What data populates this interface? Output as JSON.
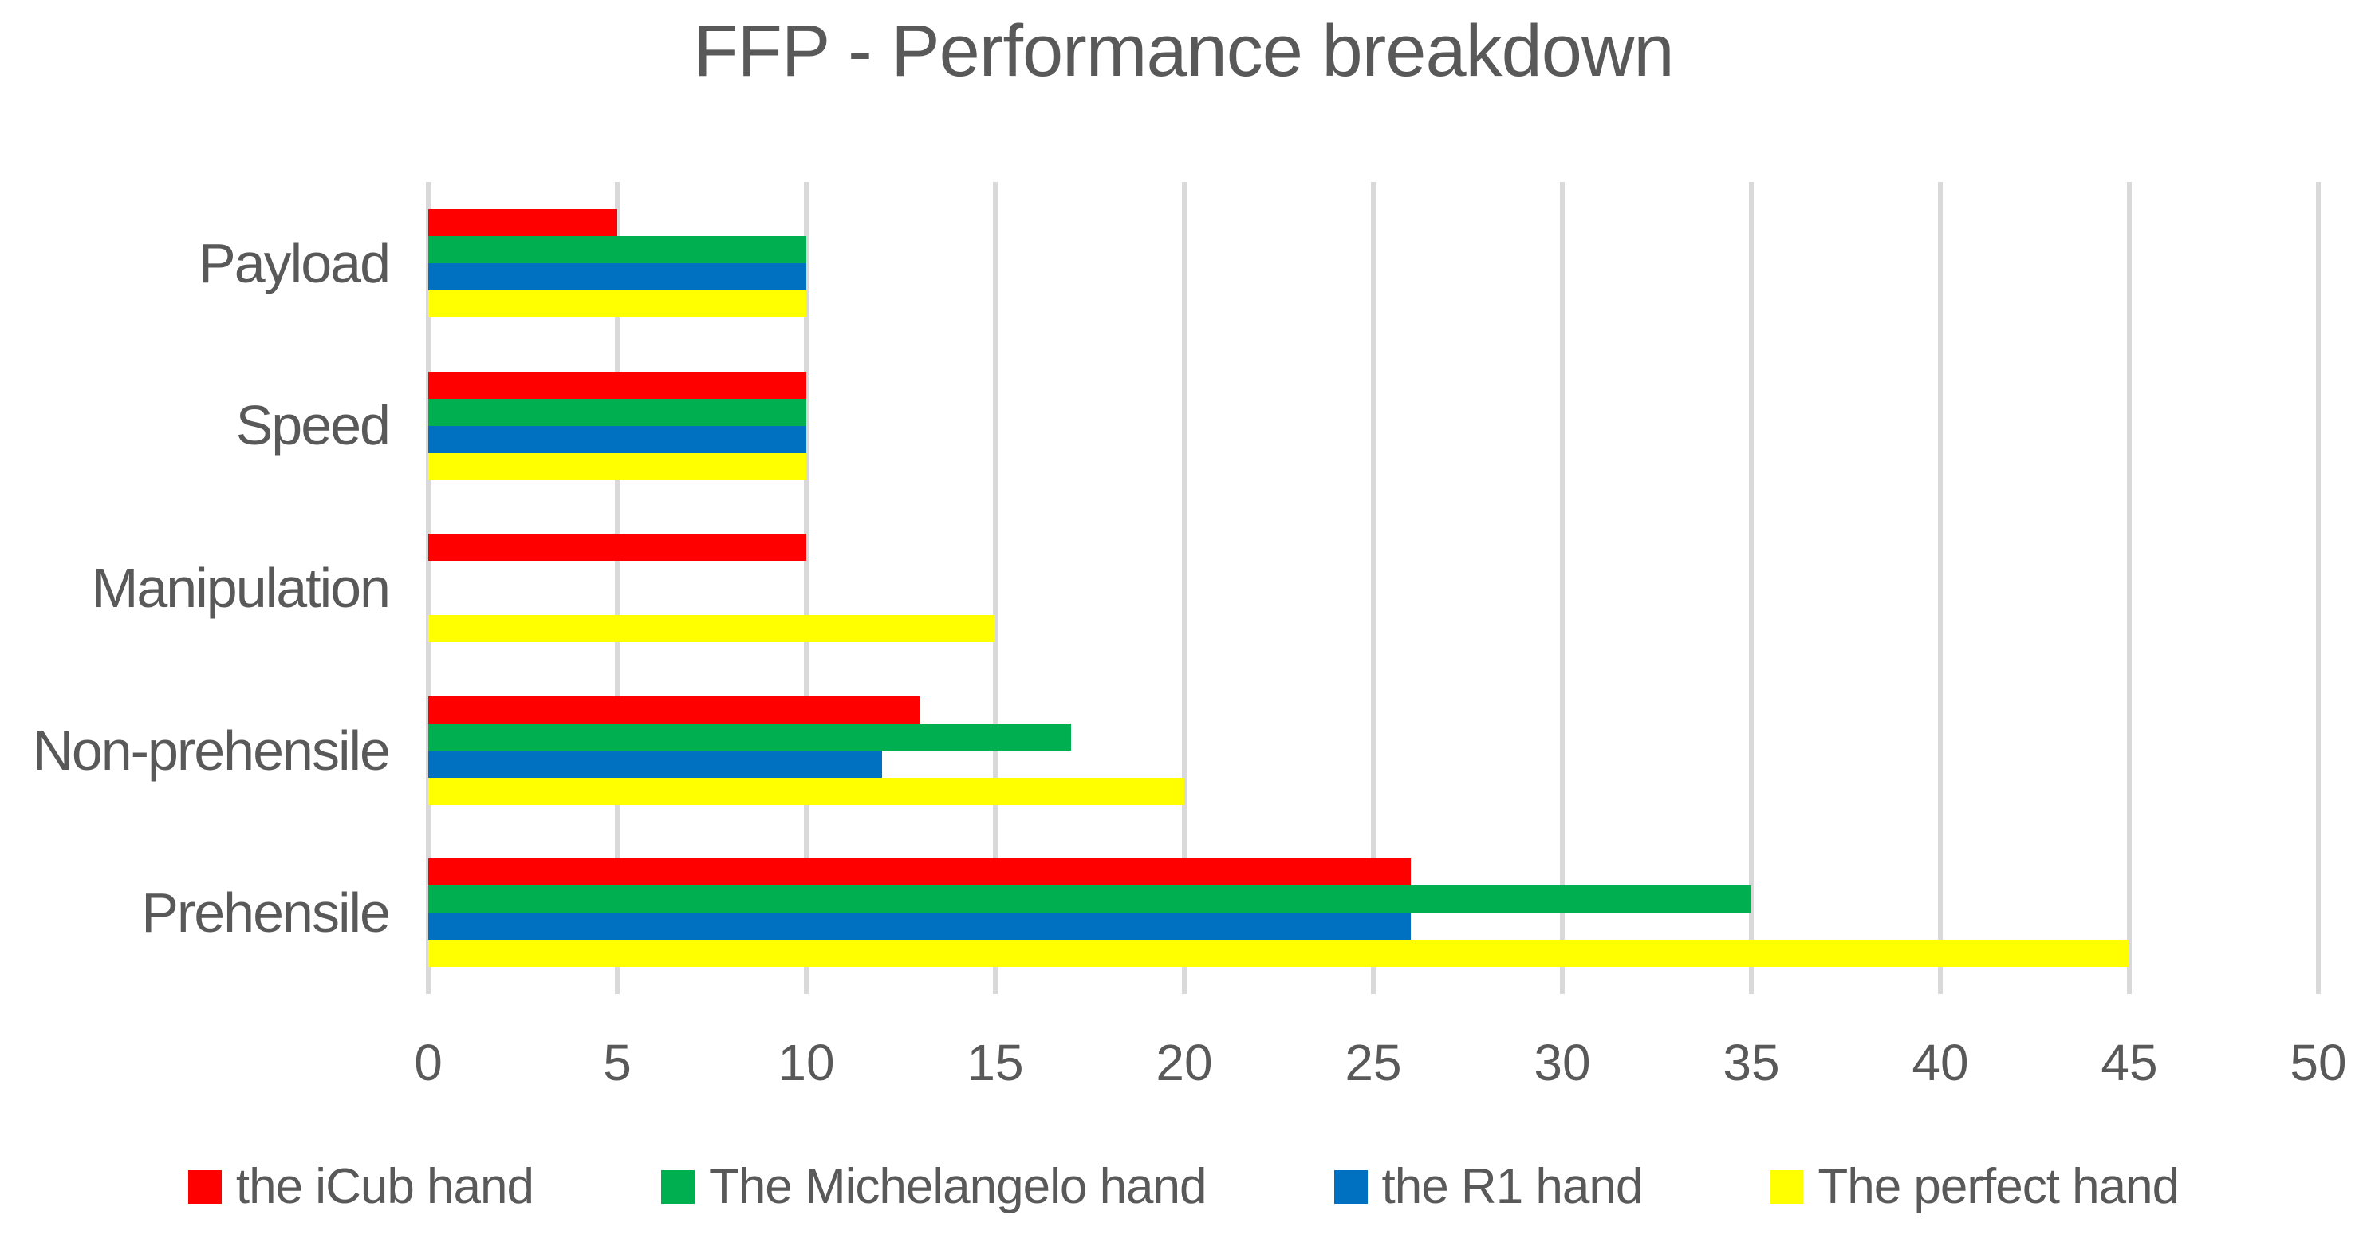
{
  "chart_data": {
    "type": "bar",
    "orientation": "horizontal",
    "title": "FFP - Performance breakdown",
    "categories": [
      "Payload",
      "Speed",
      "Manipulation",
      "Non-prehensile",
      "Prehensile"
    ],
    "series": [
      {
        "name": "the iCub hand",
        "color": "#FF0000",
        "values": [
          5,
          10,
          10,
          13,
          26
        ]
      },
      {
        "name": "The Michelangelo hand",
        "color": "#00B050",
        "values": [
          10,
          10,
          0,
          17,
          35
        ]
      },
      {
        "name": "the R1 hand",
        "color": "#0070C0",
        "values": [
          10,
          10,
          0,
          12,
          26
        ]
      },
      {
        "name": "The perfect hand",
        "color": "#FFFF00",
        "values": [
          10,
          10,
          15,
          20,
          45
        ]
      }
    ],
    "xlim": [
      0,
      50
    ],
    "xticks": [
      0,
      5,
      10,
      15,
      20,
      25,
      30,
      35,
      40,
      45,
      50
    ],
    "grid": "vertical major gridlines only",
    "legend_position": "bottom",
    "colors": {
      "text": "#595959",
      "gridline": "#D9D9D9",
      "background": "#FFFFFF"
    }
  }
}
